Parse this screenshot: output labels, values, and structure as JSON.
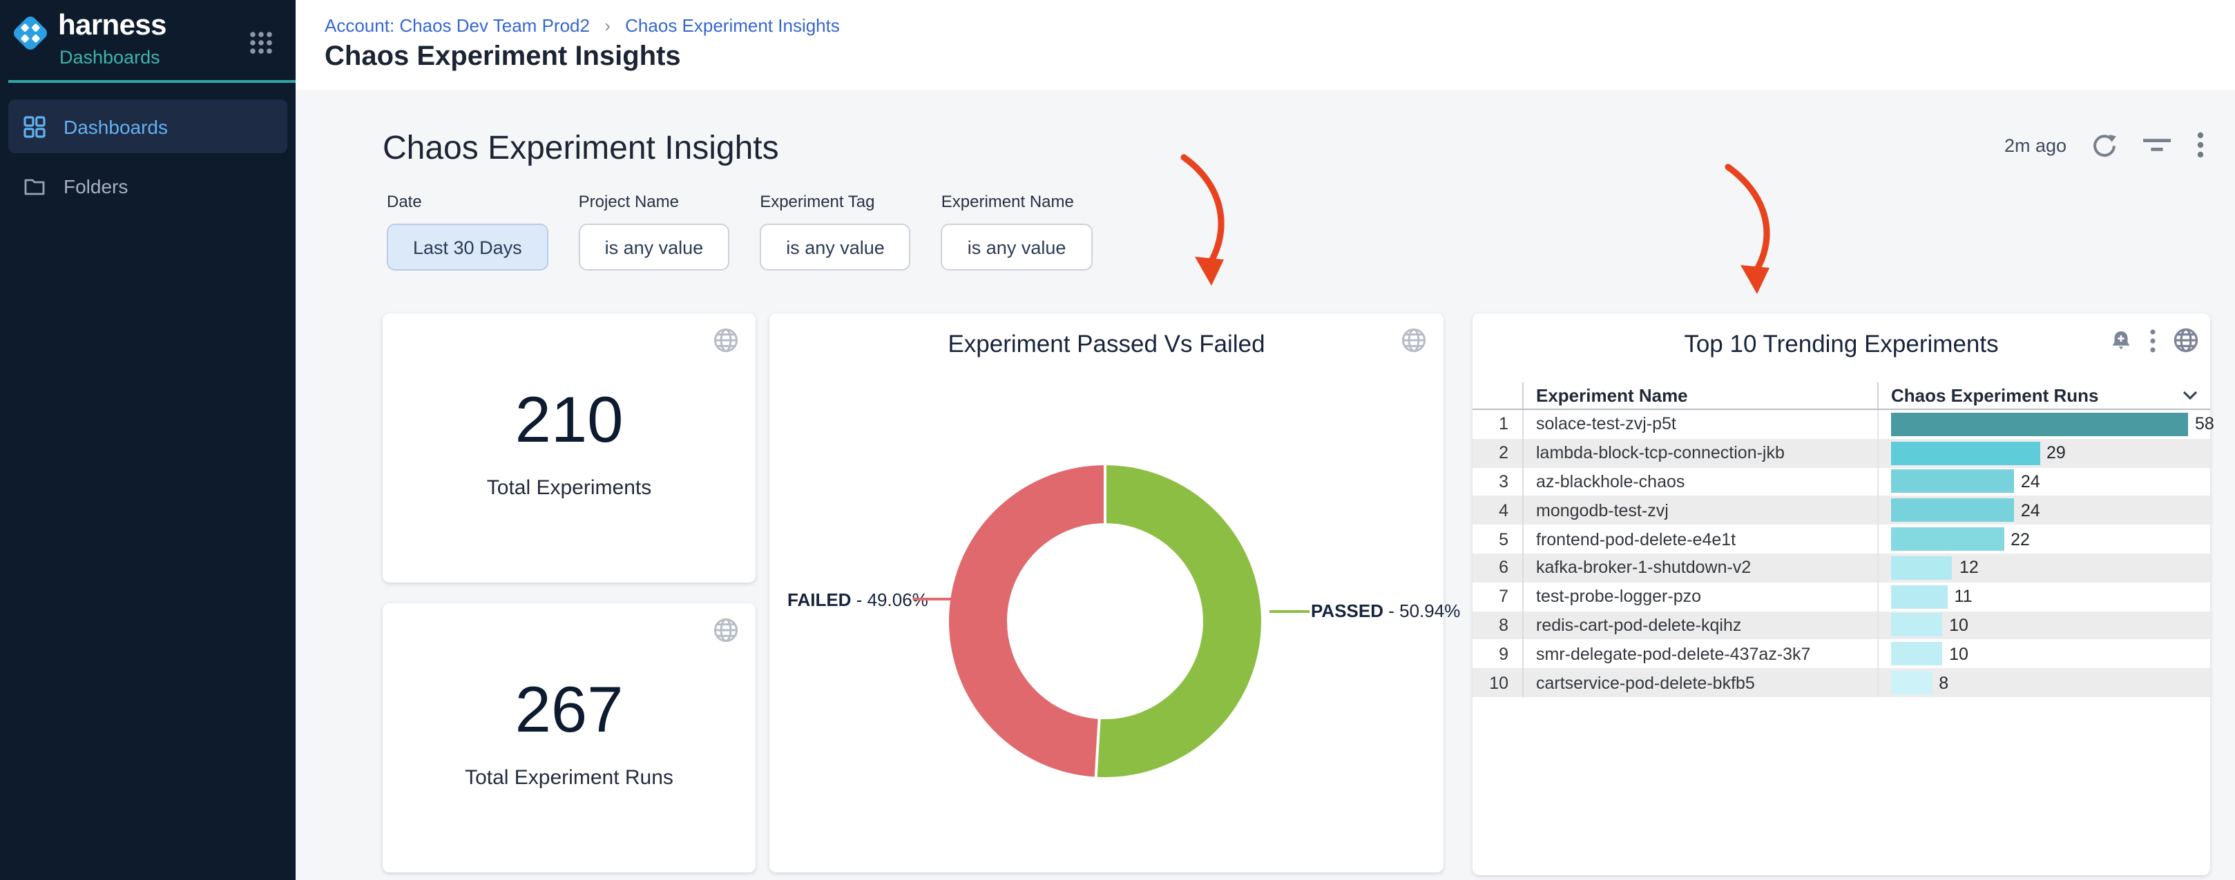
{
  "brand": {
    "name": "harness",
    "module": "Dashboards"
  },
  "sidebar": {
    "items": [
      {
        "label": "Dashboards",
        "active": true
      },
      {
        "label": "Folders",
        "active": false
      }
    ]
  },
  "header": {
    "breadcrumb": {
      "account_link": "Account: Chaos Dev Team Prod2",
      "separator": "›",
      "current": "Chaos Experiment Insights"
    },
    "page_title": "Chaos Experiment Insights"
  },
  "toolbar": {
    "title": "Chaos Experiment Insights",
    "last_refreshed": "2m ago"
  },
  "filters": [
    {
      "label": "Date",
      "value": "Last 30 Days",
      "highlighted": true
    },
    {
      "label": "Project Name",
      "value": "is any value",
      "highlighted": false
    },
    {
      "label": "Experiment Tag",
      "value": "is any value",
      "highlighted": false
    },
    {
      "label": "Experiment Name",
      "value": "is any value",
      "highlighted": false
    }
  ],
  "stat_tiles": [
    {
      "value": "210",
      "label": "Total Experiments"
    },
    {
      "value": "267",
      "label": "Total Experiment Runs"
    }
  ],
  "donut_tile": {
    "title": "Experiment Passed Vs Failed",
    "labels": [
      {
        "name": "FAILED",
        "separator": " - ",
        "value": "49.06%"
      },
      {
        "name": "PASSED",
        "separator": " - ",
        "value": "50.94%"
      }
    ]
  },
  "table_tile": {
    "title": "Top 10 Trending Experiments",
    "columns": [
      "Experiment Name",
      "Chaos Experiment Runs"
    ]
  },
  "chart_data": [
    {
      "type": "pie",
      "donut": true,
      "title": "Experiment Passed Vs Failed",
      "labels": [
        "PASSED",
        "FAILED"
      ],
      "values": [
        50.94,
        49.06
      ],
      "unit": "percent",
      "colors": [
        "#8cbe44",
        "#e0696d"
      ],
      "legend_position": "sides"
    },
    {
      "type": "bar",
      "orientation": "horizontal",
      "title": "Top 10 Trending Experiments",
      "xlabel": "Chaos Experiment Runs",
      "xlim": [
        0,
        58
      ],
      "ranks": [
        1,
        2,
        3,
        4,
        5,
        6,
        7,
        8,
        9,
        10
      ],
      "categories": [
        "solace-test-zvj-p5t",
        "lambda-block-tcp-connection-jkb",
        "az-blackhole-chaos",
        "mongodb-test-zvj",
        "frontend-pod-delete-e4e1t",
        "kafka-broker-1-shutdown-v2",
        "test-probe-logger-pzo",
        "redis-cart-pod-delete-kqihz",
        "smr-delegate-pod-delete-437az-3k7",
        "cartservice-pod-delete-bkfb5"
      ],
      "values": [
        58,
        29,
        24,
        24,
        22,
        12,
        11,
        10,
        10,
        8
      ],
      "bar_colors": [
        "#4a9aa2",
        "#5fccd9",
        "#78d2dc",
        "#78d2dc",
        "#84d8e0",
        "#b2eaf2",
        "#b7ebf3",
        "#bfeef5",
        "#bfeef5",
        "#cdf3f8"
      ]
    }
  ],
  "theme": {
    "sidebar_bg": "#0e1b2d",
    "sidebar_active_bg": "#1d2c44",
    "sidebar_active_text": "#64b1f0",
    "brand_accent_teal": "#2ea9a4",
    "link_blue": "#3567d2",
    "content_bg": "#f5f6f8",
    "passed_green": "#8cbe44",
    "failed_red": "#e0696d",
    "annotation_arrow_red": "#e8431f"
  }
}
